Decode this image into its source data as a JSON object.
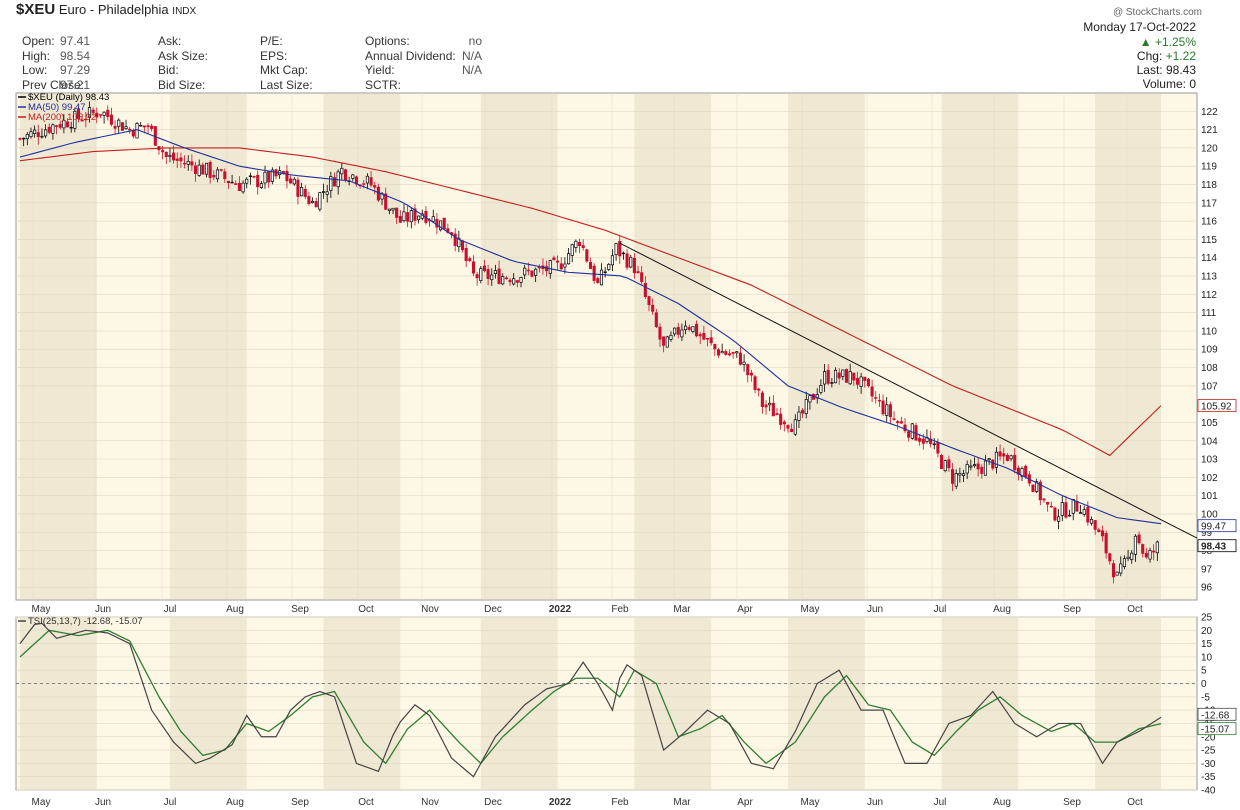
{
  "header": {
    "symbol": "$XEU",
    "name": "Euro - Philadelphia",
    "exchange": "INDX",
    "watermark": "@ StockCharts.com",
    "date": "Monday 17-Oct-2022",
    "change_pct": "+1.25%",
    "chg_label": "Chg:",
    "chg_value": "+1.22",
    "last_label": "Last:",
    "last_value": "98.43",
    "volume_label": "Volume:",
    "volume_value": "0",
    "stats": [
      {
        "label": "Open:",
        "value": "97.41"
      },
      {
        "label": "High:",
        "value": "98.54"
      },
      {
        "label": "Low:",
        "value": "97.29"
      },
      {
        "label": "Prev Close:",
        "value": "97.21"
      }
    ],
    "stats2": [
      {
        "label": "Ask:",
        "value": ""
      },
      {
        "label": "Ask Size:",
        "value": ""
      },
      {
        "label": "Bid:",
        "value": ""
      },
      {
        "label": "Bid Size:",
        "value": ""
      }
    ],
    "stats3": [
      {
        "label": "P/E:",
        "value": ""
      },
      {
        "label": "EPS:",
        "value": ""
      },
      {
        "label": "Mkt Cap:",
        "value": ""
      },
      {
        "label": "Last Size:",
        "value": ""
      }
    ],
    "stats4": [
      {
        "label": "Options:",
        "value": "no"
      },
      {
        "label": "Annual Dividend:",
        "value": "N/A"
      },
      {
        "label": "Yield:",
        "value": "N/A"
      },
      {
        "label": "SCTR:",
        "value": ""
      }
    ]
  },
  "legend": {
    "price": "$XEU (Daily) 98.43",
    "ma50": "MA(50) 99.47",
    "ma200": "MA(200) 105.92",
    "tsi": "TSI(25,13,7) -12.68, -15.07"
  },
  "colors": {
    "up": "#000000",
    "down": "#c8102e",
    "ma50": "#1f2fa0",
    "ma200": "#c41e1e",
    "tsi": "#444444",
    "signal": "#2e7d32",
    "bg": "#fdf8e6",
    "band": "#efe8d2"
  },
  "chart_data": [
    {
      "type": "candlestick",
      "title": "$XEU (Daily) 98.43",
      "ylim": [
        95.3,
        123
      ],
      "yticks": [
        96,
        97,
        98,
        99,
        100,
        101,
        102,
        103,
        104,
        105,
        107,
        108,
        109,
        110,
        111,
        112,
        113,
        114,
        115,
        116,
        117,
        118,
        119,
        120,
        121,
        122
      ],
      "months": [
        "May",
        "Jun",
        "Jul",
        "Aug",
        "Sep",
        "Oct",
        "Nov",
        "Dec",
        "2022",
        "Feb",
        "Mar",
        "Apr",
        "May",
        "Jun",
        "Jul",
        "Aug",
        "Sep",
        "Oct"
      ],
      "price_path": [
        [
          0,
          120.5
        ],
        [
          10,
          121.3
        ],
        [
          22,
          122.0
        ],
        [
          30,
          121.0
        ],
        [
          35,
          121.2
        ],
        [
          40,
          119.5
        ],
        [
          48,
          119.0
        ],
        [
          60,
          118.0
        ],
        [
          72,
          118.5
        ],
        [
          80,
          117.0
        ],
        [
          88,
          118.8
        ],
        [
          96,
          118.0
        ],
        [
          104,
          116.0
        ],
        [
          110,
          116.5
        ],
        [
          118,
          115.5
        ],
        [
          124,
          113.0
        ],
        [
          135,
          113.0
        ],
        [
          147,
          113.5
        ],
        [
          153,
          115.0
        ],
        [
          158,
          112.5
        ],
        [
          163,
          114.5
        ],
        [
          168,
          113.5
        ],
        [
          176,
          109.0
        ],
        [
          182,
          110.5
        ],
        [
          190,
          109.0
        ],
        [
          197,
          108.5
        ],
        [
          203,
          106.0
        ],
        [
          212,
          104.8
        ],
        [
          220,
          107.5
        ],
        [
          228,
          107.5
        ],
        [
          235,
          106.0
        ],
        [
          240,
          105.0
        ],
        [
          248,
          104.0
        ],
        [
          255,
          102.0
        ],
        [
          262,
          102.5
        ],
        [
          270,
          103.2
        ],
        [
          276,
          102.0
        ],
        [
          282,
          100.0
        ],
        [
          290,
          100.5
        ],
        [
          296,
          98.5
        ],
        [
          300,
          96.5
        ],
        [
          303,
          97.5
        ],
        [
          305,
          99.0
        ],
        [
          308,
          97.5
        ],
        [
          312,
          98.43
        ]
      ],
      "ma50_path": [
        [
          0,
          119.5
        ],
        [
          15,
          120.3
        ],
        [
          32,
          121.0
        ],
        [
          45,
          120.0
        ],
        [
          60,
          119.0
        ],
        [
          75,
          118.5
        ],
        [
          90,
          118.2
        ],
        [
          105,
          117.0
        ],
        [
          120,
          115.0
        ],
        [
          135,
          113.8
        ],
        [
          150,
          113.2
        ],
        [
          165,
          113.0
        ],
        [
          180,
          111.5
        ],
        [
          195,
          109.5
        ],
        [
          210,
          107.0
        ],
        [
          225,
          105.8
        ],
        [
          240,
          104.8
        ],
        [
          255,
          103.6
        ],
        [
          270,
          102.5
        ],
        [
          285,
          101.0
        ],
        [
          300,
          99.8
        ],
        [
          312,
          99.47
        ]
      ],
      "ma200_path": [
        [
          0,
          119.3
        ],
        [
          20,
          119.8
        ],
        [
          40,
          120.0
        ],
        [
          60,
          120.0
        ],
        [
          80,
          119.5
        ],
        [
          100,
          118.7
        ],
        [
          120,
          117.7
        ],
        [
          140,
          116.7
        ],
        [
          160,
          115.5
        ],
        [
          180,
          114.0
        ],
        [
          200,
          112.5
        ],
        [
          220,
          110.5
        ],
        [
          240,
          108.5
        ],
        [
          255,
          107.0
        ],
        [
          270,
          105.8
        ],
        [
          285,
          104.6
        ],
        [
          298,
          103.2
        ],
        [
          312,
          105.92
        ]
      ],
      "trendline": [
        [
          164,
          114.8
        ],
        [
          312,
          98.9
        ]
      ],
      "last_price": 98.43,
      "ma50_last": 99.47,
      "ma200_last": 105.92
    },
    {
      "type": "line",
      "title": "TSI(25,13,7) -12.68, -15.07",
      "ylim": [
        -40,
        25
      ],
      "yticks": [
        25,
        20,
        15,
        10,
        5,
        0,
        -5,
        -10,
        -15,
        -20,
        -25,
        -30,
        -35,
        -40
      ],
      "tsi": [
        [
          0,
          15
        ],
        [
          5,
          24
        ],
        [
          10,
          17
        ],
        [
          18,
          20
        ],
        [
          24,
          19
        ],
        [
          30,
          15
        ],
        [
          36,
          -10
        ],
        [
          42,
          -22
        ],
        [
          48,
          -30
        ],
        [
          52,
          -28
        ],
        [
          58,
          -23
        ],
        [
          62,
          -12
        ],
        [
          66,
          -20
        ],
        [
          70,
          -20
        ],
        [
          74,
          -10
        ],
        [
          78,
          -5
        ],
        [
          82,
          -3
        ],
        [
          86,
          -5
        ],
        [
          92,
          -30
        ],
        [
          98,
          -33
        ],
        [
          103,
          -16
        ],
        [
          108,
          -8
        ],
        [
          112,
          -12
        ],
        [
          118,
          -28
        ],
        [
          124,
          -35
        ],
        [
          130,
          -20
        ],
        [
          138,
          -8
        ],
        [
          144,
          -2
        ],
        [
          150,
          0
        ],
        [
          154,
          8
        ],
        [
          158,
          0
        ],
        [
          162,
          -10
        ],
        [
          165,
          8
        ],
        [
          170,
          3
        ],
        [
          176,
          -25
        ],
        [
          182,
          -18
        ],
        [
          188,
          -10
        ],
        [
          194,
          -15
        ],
        [
          200,
          -30
        ],
        [
          206,
          -32
        ],
        [
          212,
          -18
        ],
        [
          218,
          0
        ],
        [
          224,
          5
        ],
        [
          230,
          -10
        ],
        [
          236,
          -10
        ],
        [
          242,
          -30
        ],
        [
          248,
          -30
        ],
        [
          254,
          -15
        ],
        [
          260,
          -12
        ],
        [
          266,
          -3
        ],
        [
          272,
          -15
        ],
        [
          278,
          -20
        ],
        [
          284,
          -15
        ],
        [
          290,
          -15
        ],
        [
          296,
          -30
        ],
        [
          300,
          -22
        ],
        [
          306,
          -18
        ],
        [
          312,
          -12.68
        ]
      ],
      "signal": [
        [
          0,
          10
        ],
        [
          8,
          20
        ],
        [
          16,
          18
        ],
        [
          24,
          20
        ],
        [
          30,
          16
        ],
        [
          38,
          -5
        ],
        [
          44,
          -18
        ],
        [
          50,
          -27
        ],
        [
          56,
          -25
        ],
        [
          62,
          -15
        ],
        [
          68,
          -18
        ],
        [
          74,
          -12
        ],
        [
          80,
          -5
        ],
        [
          86,
          -3
        ],
        [
          94,
          -22
        ],
        [
          100,
          -30
        ],
        [
          106,
          -17
        ],
        [
          112,
          -10
        ],
        [
          120,
          -22
        ],
        [
          126,
          -30
        ],
        [
          132,
          -20
        ],
        [
          140,
          -10
        ],
        [
          146,
          -3
        ],
        [
          152,
          2
        ],
        [
          158,
          2
        ],
        [
          164,
          -5
        ],
        [
          168,
          5
        ],
        [
          174,
          0
        ],
        [
          180,
          -20
        ],
        [
          186,
          -17
        ],
        [
          192,
          -12
        ],
        [
          198,
          -22
        ],
        [
          204,
          -30
        ],
        [
          212,
          -22
        ],
        [
          220,
          -5
        ],
        [
          226,
          3
        ],
        [
          232,
          -8
        ],
        [
          238,
          -10
        ],
        [
          244,
          -22
        ],
        [
          250,
          -27
        ],
        [
          256,
          -18
        ],
        [
          262,
          -10
        ],
        [
          268,
          -5
        ],
        [
          274,
          -12
        ],
        [
          282,
          -18
        ],
        [
          288,
          -15
        ],
        [
          294,
          -22
        ],
        [
          300,
          -22
        ],
        [
          306,
          -17
        ],
        [
          312,
          -15.07
        ]
      ],
      "last_values": [
        -12.68,
        -15.07
      ]
    }
  ]
}
